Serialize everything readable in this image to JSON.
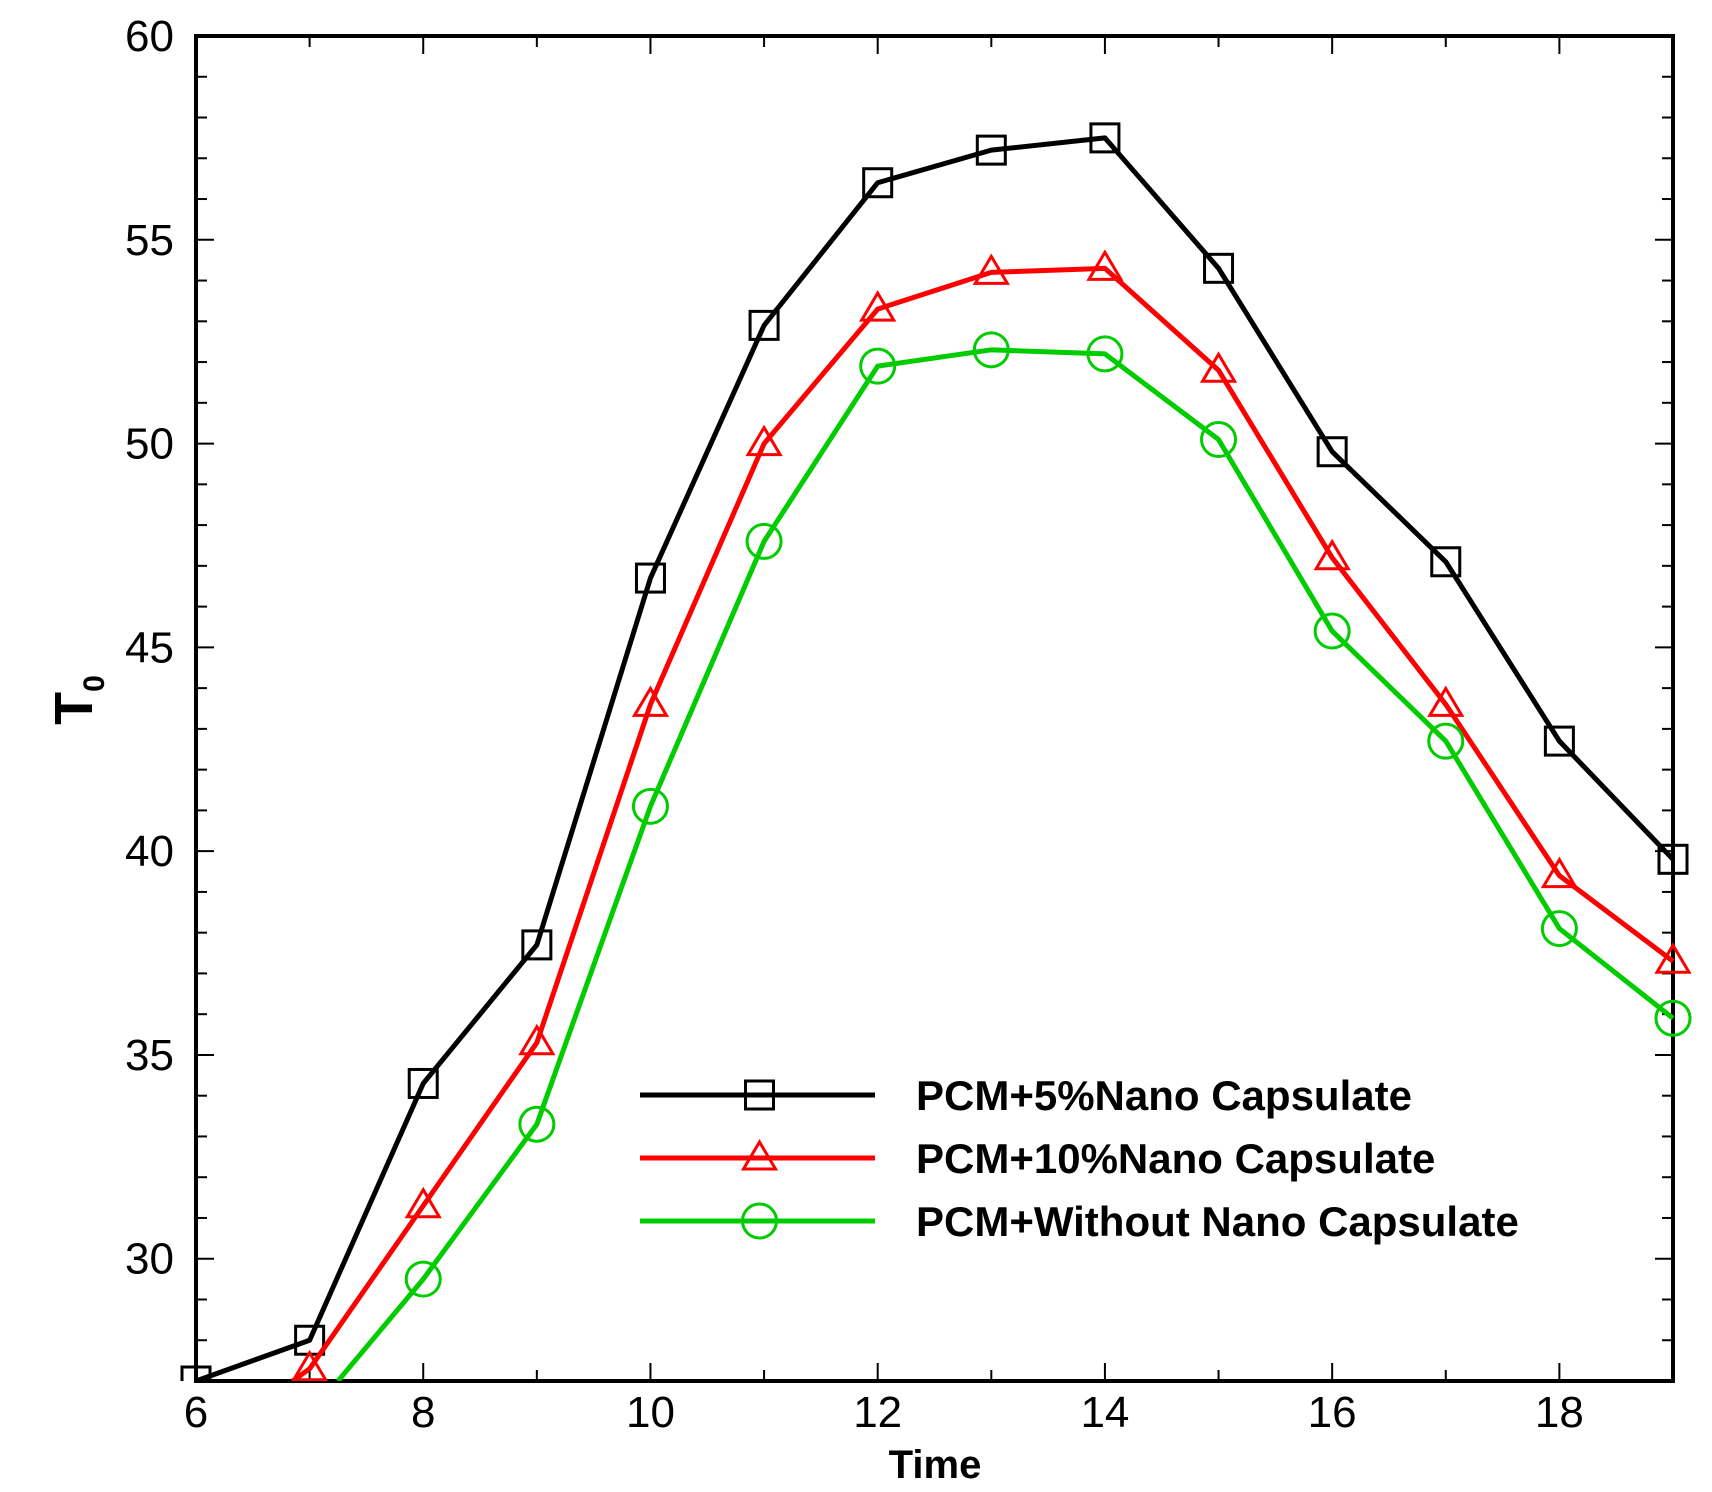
{
  "chart_data": {
    "type": "line",
    "title": "",
    "xlabel": "Time",
    "ylabel": "T",
    "ylabel_subscript": "0",
    "xlim": [
      6,
      19
    ],
    "ylim": [
      27,
      60
    ],
    "x_major_ticks": [
      6,
      8,
      10,
      12,
      14,
      16,
      18
    ],
    "x_tick_labels": [
      "6",
      "8",
      "10",
      "12",
      "14",
      "16",
      "18"
    ],
    "y_major_ticks": [
      30,
      35,
      40,
      45,
      50,
      55,
      60
    ],
    "y_tick_labels": [
      "30",
      "35",
      "40",
      "45",
      "50",
      "55",
      "60"
    ],
    "grid": false,
    "legend_position": "lower-right",
    "series": [
      {
        "name": "PCM+5%Nano Capsulate",
        "color": "#000000",
        "marker": "square",
        "x": [
          6,
          7,
          8,
          9,
          10,
          11,
          12,
          13,
          14,
          15,
          16,
          17,
          18,
          19
        ],
        "values": [
          27.0,
          28.0,
          34.3,
          37.7,
          46.7,
          52.9,
          56.4,
          57.2,
          57.5,
          54.3,
          49.8,
          47.1,
          42.7,
          39.8
        ]
      },
      {
        "name": "PCM+10%Nano Capsulate",
        "color": "#ff0000",
        "marker": "triangle",
        "x": [
          6.85,
          7,
          8,
          9,
          10,
          11,
          12,
          13,
          14,
          15,
          16,
          17,
          18,
          19
        ],
        "values": [
          27.0,
          27.3,
          31.3,
          35.3,
          43.6,
          50.0,
          53.3,
          54.2,
          54.3,
          51.8,
          47.2,
          43.6,
          39.4,
          37.3
        ]
      },
      {
        "name": "PCM+Without Nano Capsulate",
        "color": "#00cc00",
        "marker": "circle",
        "x": [
          7.25,
          8,
          9,
          10,
          11,
          12,
          13,
          14,
          15,
          16,
          17,
          18,
          19
        ],
        "values": [
          27.0,
          29.5,
          33.3,
          41.1,
          47.6,
          51.9,
          52.3,
          52.2,
          50.1,
          45.4,
          42.7,
          38.1,
          35.9
        ]
      }
    ]
  }
}
